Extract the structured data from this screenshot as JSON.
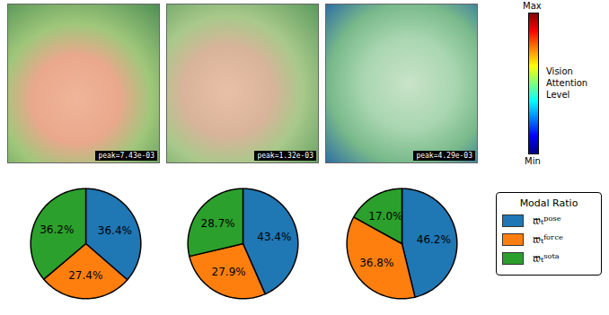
{
  "chart_data": [
    {
      "type": "pie",
      "categories": [
        "𝔴ₜᵖᵒˢᵉ",
        "𝔴ₜᶠᵒʳᶜᵉ",
        "𝔴ₜˢᵒᵗᵃ"
      ],
      "values": [
        36.4,
        27.4,
        36.2
      ],
      "value_labels": [
        "36.4%",
        "27.4%",
        "36.2%"
      ],
      "colors": [
        "#1f77b4",
        "#ff7f0e",
        "#2ca02c"
      ],
      "data_labels": true
    },
    {
      "type": "pie",
      "categories": [
        "𝔴ₜᵖᵒˢᵉ",
        "𝔴ₜᶠᵒʳᶜᵉ",
        "𝔴ₜˢᵒᵗᵃ"
      ],
      "values": [
        43.4,
        27.9,
        28.7
      ],
      "value_labels": [
        "43.4%",
        "27.9%",
        "28.7%"
      ],
      "colors": [
        "#1f77b4",
        "#ff7f0e",
        "#2ca02c"
      ],
      "data_labels": true
    },
    {
      "type": "pie",
      "categories": [
        "𝔴ₜᵖᵒˢᵉ",
        "𝔴ₜᶠᵒʳᶜᵉ",
        "𝔴ₜˢᵒᵗᵃ"
      ],
      "values": [
        46.2,
        36.8,
        17.0
      ],
      "value_labels": [
        "46.2%",
        "36.8%",
        "17.0%"
      ],
      "colors": [
        "#1f77b4",
        "#ff7f0e",
        "#2ca02c"
      ],
      "data_labels": true,
      "legend": "right"
    }
  ],
  "legend_title": "Modal Ratio",
  "colorbar": {
    "title": "Vision Attention Level",
    "max_label": "Max",
    "min_label": "Min"
  },
  "images": [
    {
      "label": "peak=7.43e-03"
    },
    {
      "label": "peak=1.32e-03"
    },
    {
      "label": "peak=4.29e-03"
    }
  ]
}
